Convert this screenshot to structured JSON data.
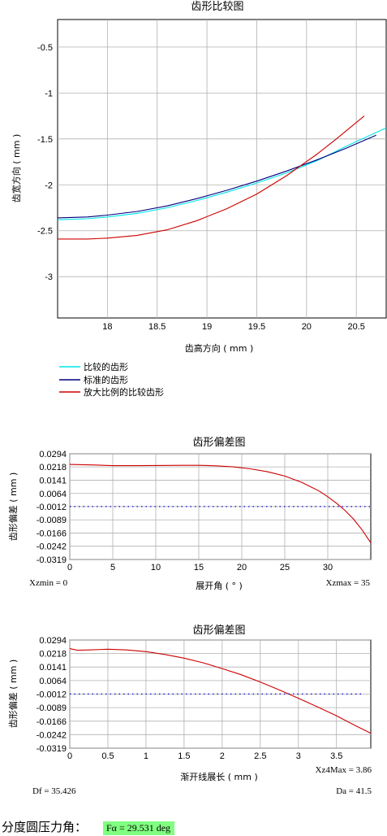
{
  "pressure_angle": {
    "label": "分度圆压力角：",
    "value_text": "Fα = 29.531 deg",
    "highlight_color": "#80ff80"
  },
  "chart_data": [
    {
      "type": "line",
      "title": "齿形比较图",
      "xlabel": "齿高方向 ( mm )",
      "ylabel": "齿宽方向 ( mm )",
      "xlim": [
        17.5,
        20.8
      ],
      "ylim": [
        -3.45,
        -0.2
      ],
      "xticks": [
        18,
        18.5,
        19,
        19.5,
        20,
        20.5
      ],
      "xtick_labels": [
        "18",
        "18.5",
        "19",
        "19.5",
        "20",
        "20.5"
      ],
      "yticks": [
        -0.5,
        -1,
        -1.5,
        -2,
        -2.5,
        -3
      ],
      "ytick_labels": [
        "-0.5",
        "-1",
        "-1.5",
        "-2",
        "-2.5",
        "-3"
      ],
      "grid": true,
      "legend_position": "below",
      "series": [
        {
          "name": "比较的齿形",
          "color": "#00e6e6",
          "x": [
            17.5,
            17.8,
            18.0,
            18.3,
            18.6,
            18.9,
            19.2,
            19.5,
            19.8,
            20.1,
            20.4,
            20.8
          ],
          "y": [
            -2.38,
            -2.37,
            -2.35,
            -2.31,
            -2.25,
            -2.17,
            -2.08,
            -1.98,
            -1.87,
            -1.74,
            -1.58,
            -1.38
          ]
        },
        {
          "name": "标准的齿形",
          "color": "#000080",
          "x": [
            17.5,
            17.8,
            18.0,
            18.3,
            18.6,
            18.9,
            19.2,
            19.5,
            19.8,
            20.1,
            20.4,
            20.7
          ],
          "y": [
            -2.36,
            -2.35,
            -2.33,
            -2.29,
            -2.23,
            -2.15,
            -2.06,
            -1.96,
            -1.85,
            -1.73,
            -1.6,
            -1.46
          ]
        },
        {
          "name": "放大比例的比较齿形",
          "color": "#cc0000",
          "x": [
            17.5,
            17.8,
            18.0,
            18.3,
            18.6,
            18.9,
            19.2,
            19.5,
            19.8,
            20.1,
            20.3,
            20.58
          ],
          "y": [
            -2.59,
            -2.59,
            -2.58,
            -2.55,
            -2.49,
            -2.39,
            -2.26,
            -2.1,
            -1.9,
            -1.67,
            -1.5,
            -1.25
          ]
        }
      ]
    },
    {
      "type": "line",
      "title": "齿形偏差图",
      "xlabel": "展开角 ( ° )",
      "ylabel": "齿形偏差 ( mm )",
      "xlim": [
        0,
        35
      ],
      "ylim": [
        -0.0319,
        0.0294
      ],
      "xticks": [
        0,
        5,
        10,
        15,
        20,
        25,
        30
      ],
      "xtick_labels": [
        "0",
        "5",
        "10",
        "15",
        "20",
        "25",
        "30"
      ],
      "yticks": [
        0.0294,
        0.0218,
        0.0141,
        0.0064,
        -0.0012,
        -0.0089,
        -0.0166,
        -0.0242,
        -0.0319
      ],
      "ytick_labels": [
        "0.0294",
        "0.0218",
        "0.0141",
        "0.0064",
        "-0.0012",
        "-0.0089",
        "-0.0166",
        "-0.0242",
        "-0.0319"
      ],
      "grid": true,
      "annotations": {
        "left": "Xzmin = 0",
        "right": "Xzmax = 35"
      },
      "series": [
        {
          "name": "",
          "color": "#cc0000",
          "x": [
            0,
            3,
            5,
            8,
            10,
            13,
            15,
            17,
            19,
            21,
            23,
            25,
            27,
            29,
            30,
            31,
            32,
            33,
            34,
            35
          ],
          "y": [
            0.0232,
            0.0229,
            0.0225,
            0.0225,
            0.0226,
            0.0227,
            0.0227,
            0.0224,
            0.0218,
            0.0207,
            0.019,
            0.0165,
            0.0128,
            0.0078,
            0.0045,
            0.0008,
            -0.0034,
            -0.0085,
            -0.0148,
            -0.0222
          ]
        },
        {
          "name": "",
          "color": "#0000cc",
          "style": "dotted",
          "x": [
            0,
            35
          ],
          "y": [
            -0.0012,
            -0.0012
          ]
        }
      ]
    },
    {
      "type": "line",
      "title": "齿形偏差图",
      "xlabel": "渐开线展长 ( mm )",
      "ylabel": "齿形偏差 ( mm )",
      "xlim": [
        0,
        3.95
      ],
      "ylim": [
        -0.0319,
        0.0294
      ],
      "xticks": [
        0,
        0.5,
        1,
        1.5,
        2,
        2.5,
        3,
        3.5
      ],
      "xtick_labels": [
        "0",
        "0.5",
        "1",
        "1.5",
        "2",
        "2.5",
        "3",
        "3.5"
      ],
      "yticks": [
        0.0294,
        0.0218,
        0.0141,
        0.0064,
        -0.0012,
        -0.0089,
        -0.0166,
        -0.0242,
        -0.0319
      ],
      "ytick_labels": [
        "0.0294",
        "0.0218",
        "0.0141",
        "0.0064",
        "-0.0012",
        "-0.0089",
        "-0.0166",
        "-0.0242",
        "-0.0319"
      ],
      "grid": true,
      "annotations": {
        "top_right": "Xz4Max = 3.86",
        "left": "Df = 35.426",
        "right": "Da = 41.5"
      },
      "series": [
        {
          "name": "",
          "color": "#cc0000",
          "x": [
            0,
            0.1,
            0.25,
            0.5,
            0.75,
            1.0,
            1.25,
            1.5,
            1.75,
            2.0,
            2.25,
            2.5,
            2.75,
            3.0,
            3.25,
            3.5,
            3.75,
            3.95
          ],
          "y": [
            0.0245,
            0.0236,
            0.0238,
            0.0242,
            0.0238,
            0.0228,
            0.0212,
            0.0191,
            0.0165,
            0.0132,
            0.0097,
            0.0056,
            0.0011,
            -0.0036,
            -0.0085,
            -0.0135,
            -0.0192,
            -0.0234
          ]
        },
        {
          "name": "",
          "color": "#0000cc",
          "style": "dotted",
          "x": [
            0,
            3.86
          ],
          "y": [
            -0.0012,
            -0.0012
          ]
        }
      ]
    }
  ]
}
